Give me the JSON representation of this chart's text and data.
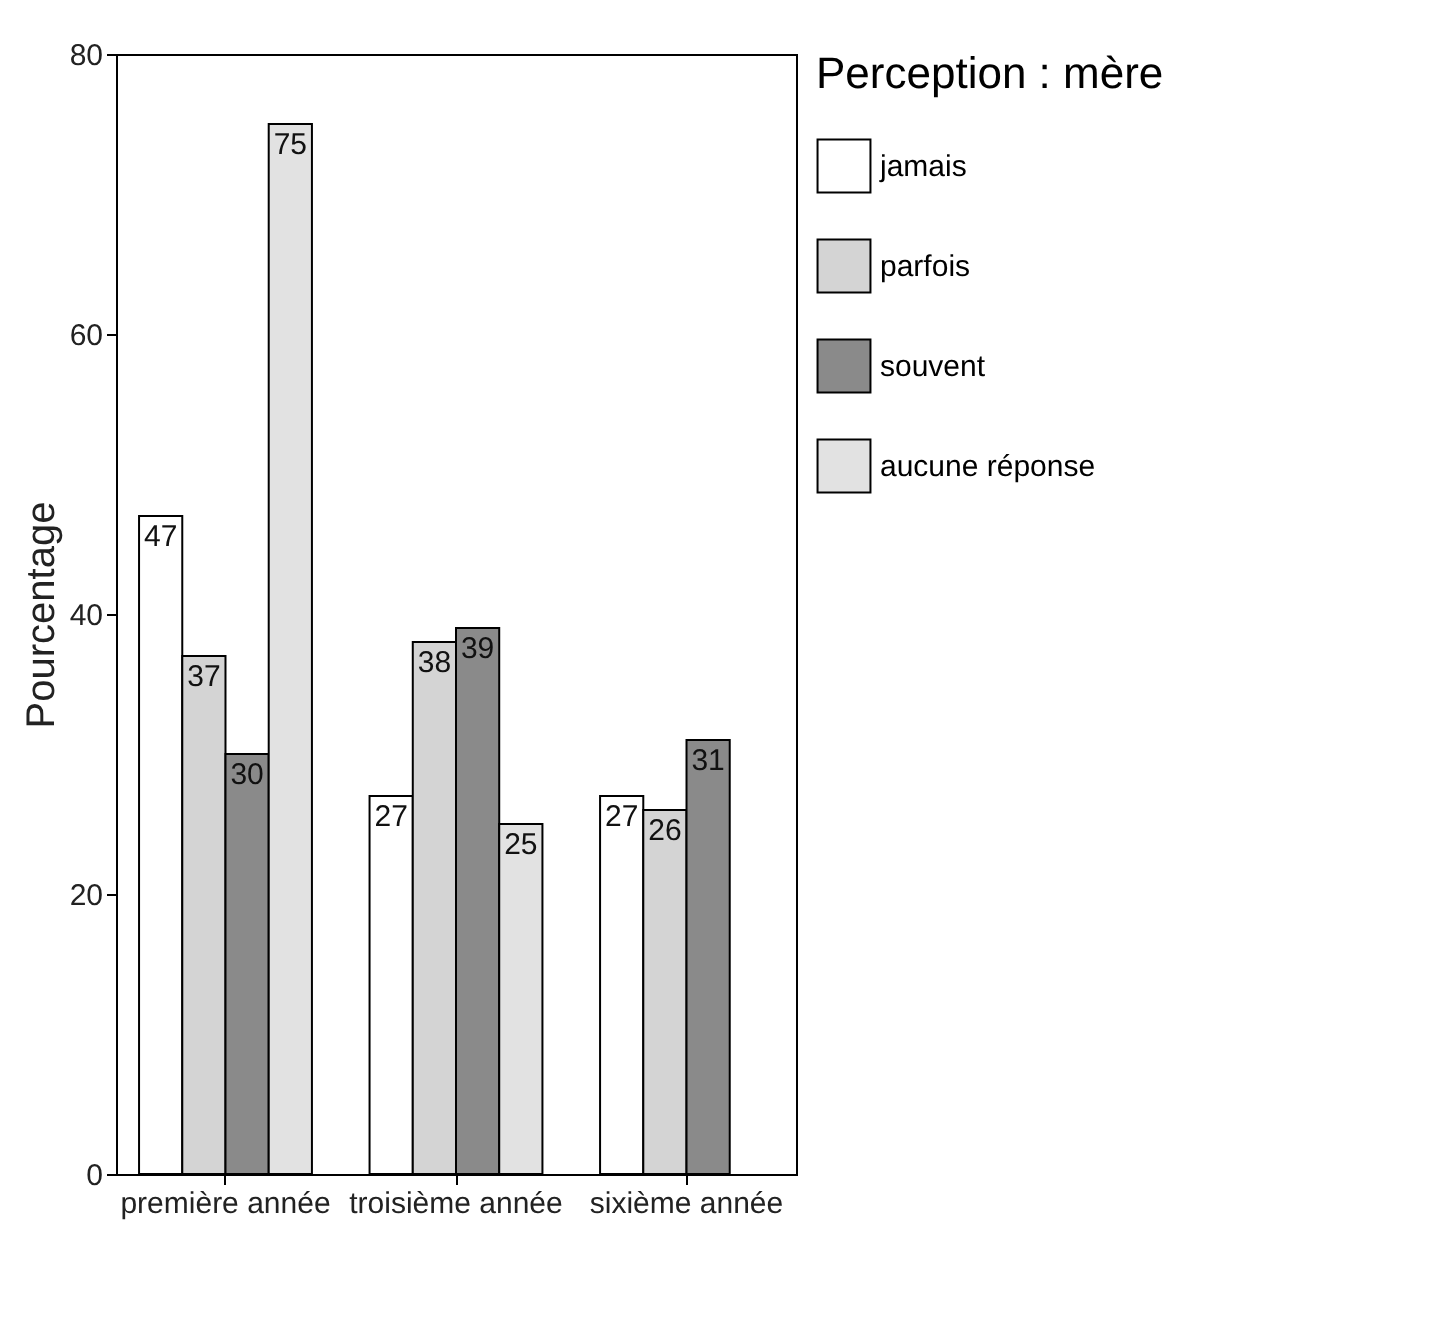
{
  "chart_data": {
    "type": "bar",
    "ylabel": "Pourcentage",
    "legend_title": "Perception : mère",
    "categories": [
      "première année",
      "troisième année",
      "sixième année"
    ],
    "series": [
      {
        "name": "jamais",
        "color": "#ffffff",
        "values": [
          47,
          27,
          27
        ]
      },
      {
        "name": "parfois",
        "color": "#d4d4d4",
        "values": [
          37,
          38,
          26
        ]
      },
      {
        "name": "souvent",
        "color": "#8a8a8a",
        "values": [
          30,
          39,
          31
        ]
      },
      {
        "name": "aucune réponse",
        "color": "#e2e2e2",
        "values": [
          75,
          25,
          null
        ]
      }
    ],
    "ylim": [
      0,
      80
    ],
    "yticks": [
      0,
      20,
      40,
      60,
      80
    ],
    "grid": false,
    "legend": "right",
    "data_labels": true
  }
}
